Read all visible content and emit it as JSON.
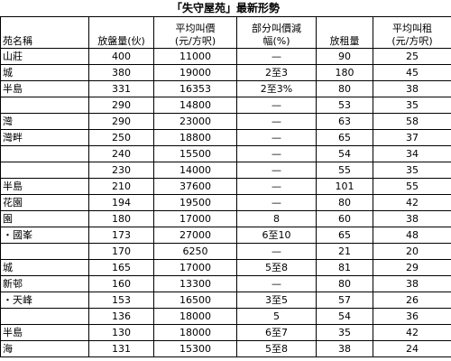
{
  "title": "「失守屋苑」最新形勢",
  "headers": [
    {
      "line1": "",
      "line2": "苑名稱"
    },
    {
      "line1": "",
      "line2": "放盤量(伙)"
    },
    {
      "line1": "平均叫價",
      "line2": "(元/方呎)"
    },
    {
      "line1": "部分叫價減",
      "line2": "幅(%)"
    },
    {
      "line1": "",
      "line2": "放租量"
    },
    {
      "line1": "平均叫租",
      "line2": "(元/方呎)"
    }
  ],
  "rows": [
    {
      "name": "山莊",
      "listings": "400",
      "avg_price": "11000",
      "cut": "—",
      "rentals": "90",
      "avg_rent": "25"
    },
    {
      "name": "城",
      "listings": "380",
      "avg_price": "19000",
      "cut": "2至3",
      "rentals": "180",
      "avg_rent": "45"
    },
    {
      "name": "半島",
      "listings": "331",
      "avg_price": "16353",
      "cut": "2至3%",
      "rentals": "80",
      "avg_rent": "38"
    },
    {
      "name": "",
      "listings": "290",
      "avg_price": "14800",
      "cut": "—",
      "rentals": "53",
      "avg_rent": "35"
    },
    {
      "name": "灣",
      "listings": "290",
      "avg_price": "23000",
      "cut": "—",
      "rentals": "63",
      "avg_rent": "58"
    },
    {
      "name": "灣畔",
      "listings": "250",
      "avg_price": "18800",
      "cut": "—",
      "rentals": "65",
      "avg_rent": "37"
    },
    {
      "name": "",
      "listings": "240",
      "avg_price": "15500",
      "cut": "—",
      "rentals": "54",
      "avg_rent": "34"
    },
    {
      "name": "",
      "listings": "230",
      "avg_price": "14000",
      "cut": "—",
      "rentals": "55",
      "avg_rent": "35"
    },
    {
      "name": "半島",
      "listings": "210",
      "avg_price": "37600",
      "cut": "—",
      "rentals": "101",
      "avg_rent": "55"
    },
    {
      "name": "花園",
      "listings": "194",
      "avg_price": "19500",
      "cut": "—",
      "rentals": "80",
      "avg_rent": "42"
    },
    {
      "name": "園",
      "listings": "180",
      "avg_price": "17000",
      "cut": "8",
      "rentals": "60",
      "avg_rent": "38"
    },
    {
      "name": "・國峯",
      "listings": "173",
      "avg_price": "27000",
      "cut": "6至10",
      "rentals": "65",
      "avg_rent": "48"
    },
    {
      "name": "",
      "listings": "170",
      "avg_price": "6250",
      "cut": "—",
      "rentals": "21",
      "avg_rent": "20"
    },
    {
      "name": "城",
      "listings": "165",
      "avg_price": "17000",
      "cut": "5至8",
      "rentals": "81",
      "avg_rent": "29"
    },
    {
      "name": "新邨",
      "listings": "160",
      "avg_price": "13300",
      "cut": "—",
      "rentals": "80",
      "avg_rent": "38"
    },
    {
      "name": "・天峰",
      "listings": "153",
      "avg_price": "16500",
      "cut": "3至5",
      "rentals": "57",
      "avg_rent": "26"
    },
    {
      "name": "",
      "listings": "136",
      "avg_price": "18000",
      "cut": "5",
      "rentals": "54",
      "avg_rent": "36"
    },
    {
      "name": "半島",
      "listings": "130",
      "avg_price": "18000",
      "cut": "6至7",
      "rentals": "35",
      "avg_rent": "42"
    },
    {
      "name": "海",
      "listings": "131",
      "avg_price": "15300",
      "cut": "5至8",
      "rentals": "38",
      "avg_rent": "24"
    }
  ]
}
